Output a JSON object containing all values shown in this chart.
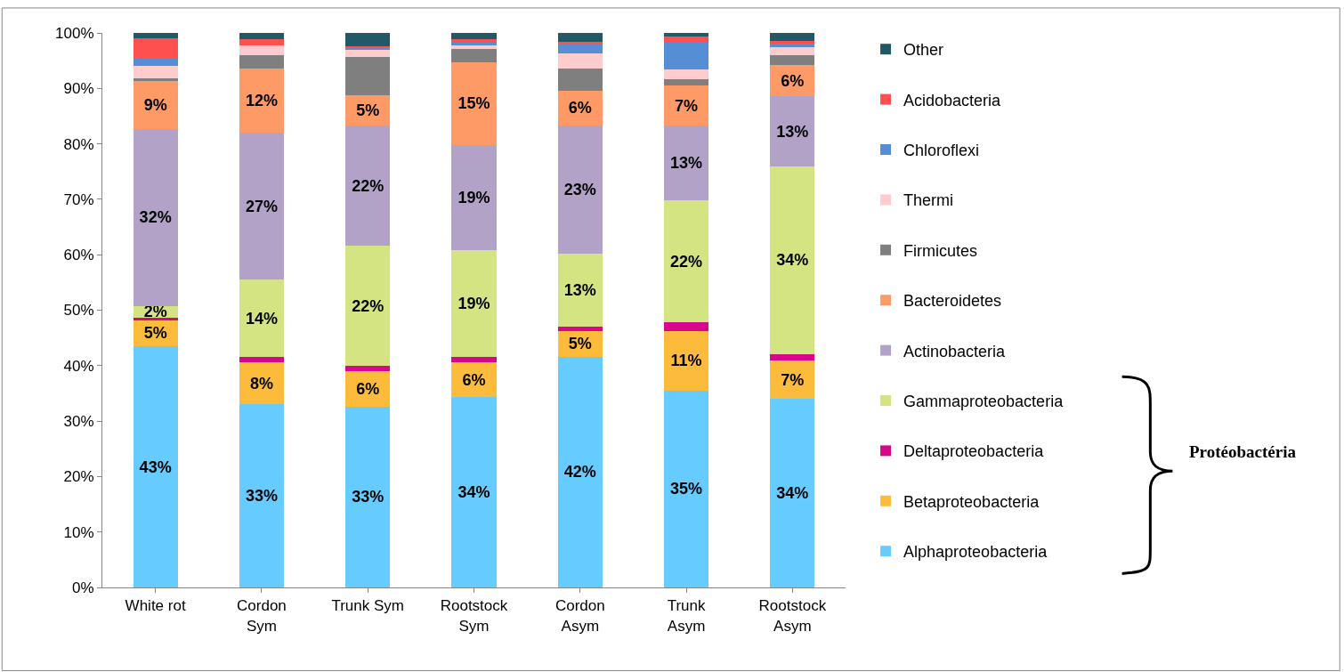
{
  "chart_data": {
    "type": "bar",
    "stacked": true,
    "categories": [
      "White rot",
      "Cordon\nSym",
      "Trunk Sym",
      "Rootstock\nSym",
      "Cordon\nAsym",
      "Trunk\nAsym",
      "Rootstock\nAsym"
    ],
    "series": [
      {
        "name": "Alphaproteobacteria",
        "color": "#66ccff",
        "values": [
          43.5,
          33.0,
          32.6,
          34.3,
          41.6,
          35.5,
          34.0
        ],
        "value_labels": [
          "43%",
          "33%",
          "33%",
          "34%",
          "42%",
          "35%",
          "34%"
        ]
      },
      {
        "name": "Betaproteobacteria",
        "color": "#fdbb3c",
        "values": [
          4.8,
          7.6,
          6.4,
          6.3,
          4.7,
          10.8,
          6.9
        ],
        "value_labels": [
          "5%",
          "8%",
          "6%",
          "6%",
          "5%",
          "11%",
          "7%"
        ]
      },
      {
        "name": "Deltaproteobacteria",
        "color": "#d6078c",
        "values": [
          0.3,
          1.0,
          1.0,
          0.9,
          0.7,
          1.5,
          1.2
        ]
      },
      {
        "name": "Gammaproteobacteria",
        "color": "#d4e483",
        "values": [
          2.2,
          13.9,
          21.6,
          19.4,
          13.2,
          22.0,
          33.8
        ],
        "value_labels": [
          "2%",
          "14%",
          "22%",
          "19%",
          "13%",
          "22%",
          "34%"
        ]
      },
      {
        "name": "Actinobacteria",
        "color": "#b3a2c7",
        "values": [
          31.9,
          26.5,
          21.7,
          18.9,
          23.1,
          13.5,
          12.7
        ],
        "value_labels": [
          "32%",
          "27%",
          "22%",
          "19%",
          "23%",
          "13%",
          "13%"
        ]
      },
      {
        "name": "Bacteroidetes",
        "color": "#fd9a66",
        "values": [
          8.6,
          11.6,
          5.5,
          14.9,
          6.3,
          7.2,
          5.6
        ],
        "value_labels": [
          "9%",
          "12%",
          "5%",
          "15%",
          "6%",
          "7%",
          "6%"
        ]
      },
      {
        "name": "Firmicutes",
        "color": "#7f7f7f",
        "values": [
          0.5,
          2.4,
          6.9,
          2.4,
          4.0,
          1.2,
          1.8
        ]
      },
      {
        "name": "Thermi",
        "color": "#fecccc",
        "values": [
          2.3,
          1.8,
          1.3,
          0.8,
          2.7,
          1.7,
          1.4
        ]
      },
      {
        "name": "Chloroflexi",
        "color": "#558ed5",
        "values": [
          1.4,
          0.0,
          0.4,
          0.3,
          1.6,
          5.0,
          0.5
        ]
      },
      {
        "name": "Acidobacteria",
        "color": "#ff5050",
        "values": [
          3.5,
          1.1,
          0.2,
          0.7,
          0.5,
          1.0,
          0.7
        ]
      },
      {
        "name": "Other",
        "color": "#215967",
        "values": [
          1.0,
          1.1,
          2.4,
          1.1,
          1.6,
          0.6,
          1.4
        ]
      }
    ],
    "ylim": [
      0,
      100
    ],
    "yticks": [
      {
        "value": 0,
        "label": "0%"
      },
      {
        "value": 10,
        "label": "10%"
      },
      {
        "value": 20,
        "label": "20%"
      },
      {
        "value": 30,
        "label": "30%"
      },
      {
        "value": 40,
        "label": "40%"
      },
      {
        "value": 50,
        "label": "50%"
      },
      {
        "value": 60,
        "label": "60%"
      },
      {
        "value": 70,
        "label": "70%"
      },
      {
        "value": 80,
        "label": "80%"
      },
      {
        "value": 90,
        "label": "90%"
      },
      {
        "value": 100,
        "label": "100%"
      }
    ],
    "legend": "right",
    "annotations": [
      "Protéobactéria"
    ]
  }
}
